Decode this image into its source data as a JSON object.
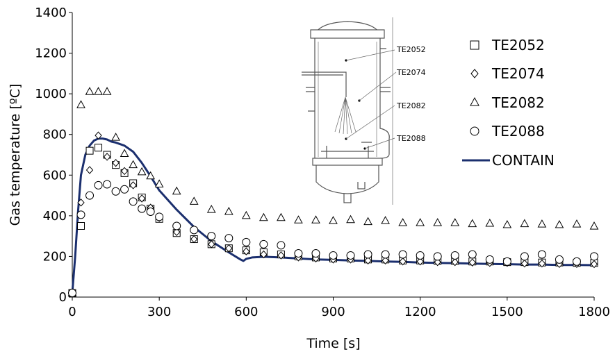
{
  "chart_data": {
    "type": "scatter",
    "xlabel": "Time [s]",
    "ylabel": "Gas temperature [ºC]",
    "xlim": [
      0,
      1800
    ],
    "ylim": [
      0,
      1400
    ],
    "xticks": [
      0,
      300,
      600,
      900,
      1200,
      1500,
      1800
    ],
    "yticks": [
      0,
      200,
      400,
      600,
      800,
      1000,
      1200,
      1400
    ],
    "grid": false,
    "legend_position": "right",
    "series": [
      {
        "name": "TE2052",
        "marker": "square",
        "x": [
          0,
          30,
          60,
          90,
          120,
          150,
          180,
          210,
          240,
          270,
          300,
          360,
          420,
          480,
          540,
          600,
          660,
          720,
          780,
          840,
          900,
          960,
          1020,
          1080,
          1140,
          1200,
          1260,
          1320,
          1380,
          1440,
          1500,
          1560,
          1620,
          1680,
          1740,
          1800
        ],
        "y": [
          20,
          350,
          720,
          735,
          700,
          650,
          610,
          560,
          490,
          435,
          385,
          315,
          285,
          260,
          240,
          230,
          220,
          210,
          200,
          195,
          190,
          190,
          185,
          185,
          180,
          180,
          178,
          178,
          175,
          175,
          172,
          172,
          170,
          170,
          168,
          168
        ]
      },
      {
        "name": "TE2074",
        "marker": "diamond",
        "x": [
          0,
          30,
          60,
          90,
          120,
          150,
          180,
          210,
          240,
          270,
          300,
          360,
          420,
          480,
          540,
          600,
          660,
          720,
          780,
          840,
          900,
          960,
          1020,
          1080,
          1140,
          1200,
          1260,
          1320,
          1380,
          1440,
          1500,
          1560,
          1620,
          1680,
          1740,
          1800
        ],
        "y": [
          20,
          465,
          625,
          795,
          690,
          660,
          620,
          550,
          485,
          440,
          390,
          320,
          285,
          260,
          240,
          225,
          210,
          205,
          195,
          190,
          185,
          185,
          180,
          180,
          175,
          175,
          172,
          172,
          170,
          168,
          168,
          165,
          165,
          163,
          163,
          162
        ]
      },
      {
        "name": "TE2082",
        "marker": "triangle",
        "x": [
          0,
          30,
          60,
          90,
          120,
          150,
          180,
          210,
          240,
          270,
          300,
          360,
          420,
          480,
          540,
          600,
          660,
          720,
          780,
          840,
          900,
          960,
          1020,
          1080,
          1140,
          1200,
          1260,
          1320,
          1380,
          1440,
          1500,
          1560,
          1620,
          1680,
          1740,
          1800
        ],
        "y": [
          20,
          945,
          1010,
          1010,
          1010,
          785,
          705,
          650,
          615,
          595,
          555,
          520,
          470,
          430,
          420,
          400,
          390,
          390,
          378,
          378,
          375,
          380,
          370,
          375,
          365,
          365,
          365,
          365,
          360,
          362,
          355,
          360,
          358,
          355,
          358,
          348
        ]
      },
      {
        "name": "TE2088",
        "marker": "circle",
        "x": [
          0,
          30,
          60,
          90,
          120,
          150,
          180,
          210,
          240,
          270,
          300,
          360,
          420,
          480,
          540,
          600,
          660,
          720,
          780,
          840,
          900,
          960,
          1020,
          1080,
          1140,
          1200,
          1260,
          1320,
          1380,
          1440,
          1500,
          1560,
          1620,
          1680,
          1740,
          1800
        ],
        "y": [
          20,
          405,
          500,
          550,
          555,
          520,
          530,
          470,
          435,
          420,
          395,
          350,
          330,
          300,
          290,
          270,
          260,
          255,
          215,
          215,
          205,
          205,
          210,
          210,
          210,
          205,
          200,
          205,
          210,
          185,
          175,
          200,
          210,
          185,
          175,
          200
        ]
      },
      {
        "name": "CONTAIN",
        "marker": "line",
        "color": "#1b2f6e",
        "x": [
          0,
          10,
          20,
          30,
          45,
          60,
          75,
          90,
          105,
          120,
          135,
          150,
          180,
          210,
          240,
          270,
          300,
          360,
          420,
          480,
          540,
          580,
          590,
          600,
          620,
          660,
          720,
          780,
          840,
          900,
          960,
          1020,
          1080,
          1140,
          1200,
          1260,
          1320,
          1380,
          1440,
          1500,
          1560,
          1620,
          1680,
          1740,
          1800
        ],
        "y": [
          20,
          200,
          420,
          600,
          700,
          745,
          770,
          780,
          780,
          775,
          765,
          760,
          745,
          715,
          660,
          595,
          525,
          430,
          345,
          275,
          220,
          185,
          178,
          188,
          195,
          198,
          195,
          190,
          185,
          183,
          180,
          178,
          175,
          173,
          170,
          168,
          167,
          165,
          163,
          162,
          160,
          160,
          158,
          158,
          157
        ]
      }
    ]
  },
  "inset": {
    "labels": [
      "TE2052",
      "TE2074",
      "TE2082",
      "TE2088"
    ]
  }
}
